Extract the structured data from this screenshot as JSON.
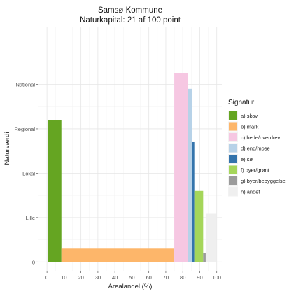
{
  "chart_data": {
    "type": "bar",
    "title": "Samsø Kommune",
    "subtitle": "Naturkapital: 21 af 100 point",
    "xlabel": "Arealandel (%)",
    "ylabel": "Naturværdi",
    "xlim": [
      -5,
      103
    ],
    "ylim": [
      -0.2,
      5.3
    ],
    "x_ticks": [
      0,
      10,
      20,
      30,
      40,
      50,
      60,
      70,
      80,
      90,
      100
    ],
    "y_ticks": [
      {
        "value": 0,
        "label": "0"
      },
      {
        "value": 1,
        "label": "Lille"
      },
      {
        "value": 2,
        "label": "Lokal"
      },
      {
        "value": 3,
        "label": "Regional"
      },
      {
        "value": 4,
        "label": "National"
      }
    ],
    "grid": true,
    "legend_position": "right",
    "legend_title": "Signatur",
    "series": [
      {
        "name": "a) skov",
        "color": "#65A522",
        "x_start": 0.5,
        "x_end": 8.5,
        "value": 3.2
      },
      {
        "name": "b) mark",
        "color": "#FDB66A",
        "x_start": 8.5,
        "x_end": 75.0,
        "value": 0.3
      },
      {
        "name": "c) hede/overdrev",
        "color": "#F6C7E2",
        "x_start": 75.0,
        "x_end": 83.0,
        "value": 4.25
      },
      {
        "name": "d) eng/mose",
        "color": "#B7D2E8",
        "x_start": 83.0,
        "x_end": 85.5,
        "value": 3.9
      },
      {
        "name": "e) sø",
        "color": "#3474AC",
        "x_start": 85.5,
        "x_end": 86.8,
        "value": 2.7
      },
      {
        "name": "f) byer/grønt",
        "color": "#A5D65A",
        "x_start": 86.8,
        "x_end": 92.0,
        "value": 1.6
      },
      {
        "name": "g) byer/bebyggelse",
        "color": "#9B9B9B",
        "x_start": 92.0,
        "x_end": 93.5,
        "value": 0.2
      },
      {
        "name": "h) andet",
        "color": "#EFEFEF",
        "x_start": 93.5,
        "x_end": 100.0,
        "value": 1.1
      }
    ]
  }
}
